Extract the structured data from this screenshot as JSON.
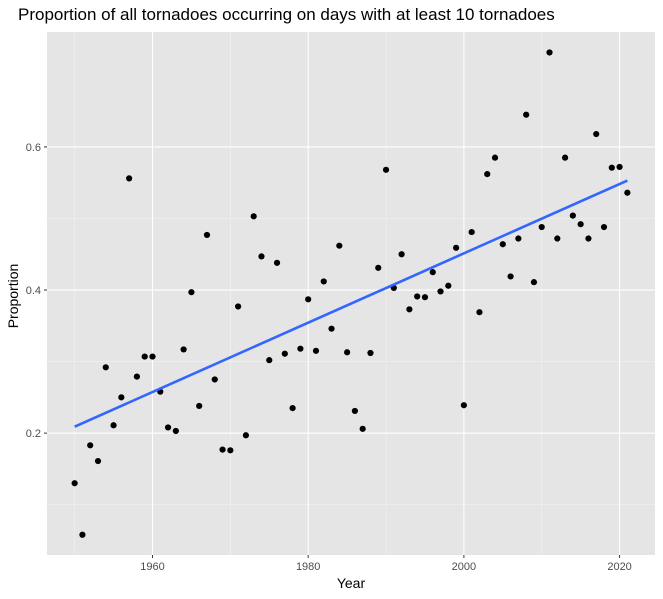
{
  "chart_data": {
    "type": "scatter",
    "title": "Proportion of all tornadoes occurring on days with at least 10 tornadoes",
    "xlabel": "Year",
    "ylabel": "Proportion",
    "xlim": [
      1946.45,
      2024.55
    ],
    "ylim": [
      0.0297,
      0.7606
    ],
    "x_ticks": [
      1960,
      1980,
      2000,
      2020
    ],
    "y_ticks": [
      0.2,
      0.4,
      0.6
    ],
    "x_tick_labels": [
      "1960",
      "1980",
      "2000",
      "2020"
    ],
    "y_tick_labels": [
      "0.2",
      "0.4",
      "0.6"
    ],
    "grid": true,
    "legend": "none",
    "colors": {
      "panel_background": "#e5e5e5",
      "grid_major": "#ffffff",
      "grid_minor": "#f2f2f2",
      "point": "#000000",
      "trend_line": "#3366ff"
    },
    "points": {
      "x": [
        1950,
        1951,
        1952,
        1953,
        1954,
        1955,
        1956,
        1957,
        1958,
        1959,
        1960,
        1961,
        1962,
        1963,
        1964,
        1965,
        1966,
        1967,
        1968,
        1969,
        1970,
        1971,
        1972,
        1973,
        1974,
        1975,
        1976,
        1977,
        1978,
        1979,
        1980,
        1981,
        1982,
        1983,
        1984,
        1985,
        1986,
        1987,
        1988,
        1989,
        1990,
        1991,
        1992,
        1993,
        1994,
        1995,
        1996,
        1997,
        1998,
        1999,
        2000,
        2001,
        2002,
        2003,
        2004,
        2005,
        2006,
        2007,
        2008,
        2009,
        2010,
        2011,
        2012,
        2013,
        2014,
        2015,
        2016,
        2017,
        2018,
        2019,
        2020,
        2021
      ],
      "y": [
        0.13,
        0.058,
        0.183,
        0.161,
        0.292,
        0.211,
        0.25,
        0.556,
        0.279,
        0.307,
        0.307,
        0.258,
        0.208,
        0.203,
        0.317,
        0.397,
        0.238,
        0.477,
        0.275,
        0.177,
        0.176,
        0.377,
        0.197,
        0.503,
        0.447,
        0.302,
        0.438,
        0.311,
        0.235,
        0.318,
        0.387,
        0.315,
        0.412,
        0.346,
        0.462,
        0.313,
        0.231,
        0.206,
        0.312,
        0.431,
        0.568,
        0.403,
        0.45,
        0.373,
        0.391,
        0.39,
        0.425,
        0.398,
        0.406,
        0.459,
        0.239,
        0.481,
        0.369,
        0.562,
        0.585,
        0.464,
        0.419,
        0.472,
        0.645,
        0.411,
        0.488,
        0.732,
        0.472,
        0.585,
        0.504,
        0.492,
        0.472,
        0.618,
        0.488,
        0.571,
        0.572,
        0.536
      ]
    },
    "trend_line": {
      "method": "linear",
      "x": [
        1950,
        2021
      ],
      "y": [
        0.209,
        0.553
      ]
    }
  }
}
